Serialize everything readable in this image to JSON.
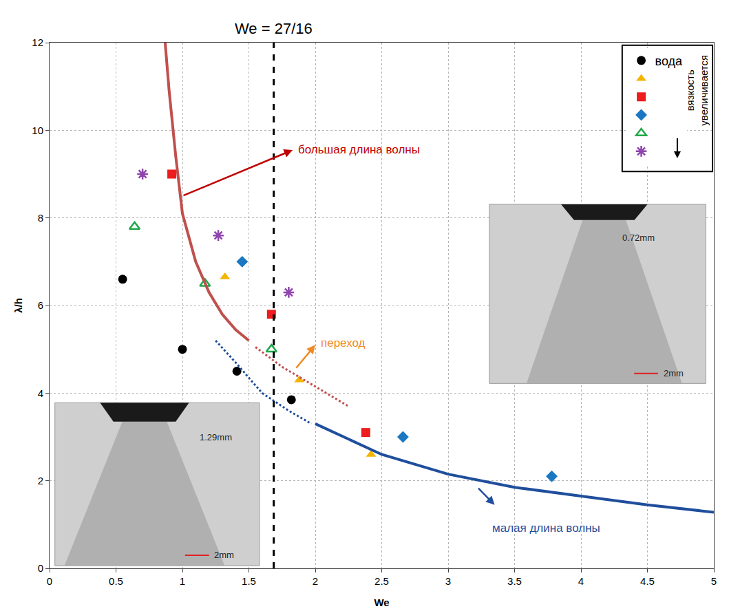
{
  "chart_data": {
    "type": "scatter",
    "x_label": "We",
    "y_label": "λ/h",
    "xlim": [
      0,
      5
    ],
    "xticks": [
      0,
      0.5,
      1,
      1.5,
      2,
      2.5,
      3,
      3.5,
      4,
      4.5,
      5
    ],
    "ylim": [
      0,
      12
    ],
    "yticks": [
      0,
      2,
      4,
      6,
      8,
      10,
      12
    ],
    "grid": true,
    "legend": "upper right",
    "legend_note": "вязкость увеличивается",
    "vline": {
      "x": 1.6875,
      "label": "We = 27/16",
      "line_style": "dashed",
      "color": "#000000"
    },
    "series": [
      {
        "name": "вода",
        "type": "scatter",
        "marker": "circle",
        "color": "#000000",
        "x": [
          0.55,
          1.0,
          1.41,
          1.82
        ],
        "values": [
          6.6,
          5.0,
          4.5,
          3.85
        ]
      },
      {
        "type": "scatter",
        "marker": "triangle-up",
        "color": "#f5b400",
        "x": [
          1.32,
          1.88,
          2.42
        ],
        "values": [
          6.65,
          4.3,
          2.6
        ]
      },
      {
        "type": "scatter",
        "marker": "square",
        "color": "#ee1c1c",
        "x": [
          0.92,
          1.67,
          2.38
        ],
        "values": [
          9.0,
          5.8,
          3.1
        ]
      },
      {
        "type": "scatter",
        "marker": "diamond",
        "color": "#1a78c2",
        "x": [
          1.45,
          2.66,
          3.78
        ],
        "values": [
          7.0,
          3.0,
          2.1
        ]
      },
      {
        "type": "scatter",
        "marker": "triangle-up-open",
        "color": "#22a84a",
        "x": [
          0.64,
          1.17,
          1.67
        ],
        "values": [
          7.8,
          6.5,
          5.0
        ]
      },
      {
        "type": "scatter",
        "marker": "asterisk-open",
        "color": "#8e44ad",
        "x": [
          0.7,
          1.27,
          1.8
        ],
        "values": [
          9.0,
          7.6,
          6.3
        ]
      },
      {
        "type": "line",
        "line_style": "solid",
        "color": "#c0504d",
        "x": [
          0.87,
          0.9,
          0.95,
          1.0,
          1.1,
          1.2,
          1.3,
          1.4,
          1.5
        ],
        "values": [
          12,
          10.9,
          9.4,
          8.1,
          7.0,
          6.3,
          5.8,
          5.45,
          5.2
        ]
      },
      {
        "type": "line",
        "line_style": "dotted",
        "color": "#c0504d",
        "x": [
          1.55,
          1.75,
          2.0,
          2.25
        ],
        "values": [
          5.05,
          4.6,
          4.15,
          3.7
        ]
      },
      {
        "type": "line",
        "line_style": "dotted",
        "color": "#1f4e9c",
        "x": [
          1.25,
          1.4,
          1.6,
          1.8,
          1.97
        ],
        "values": [
          5.2,
          4.7,
          4.0,
          3.6,
          3.3
        ]
      },
      {
        "type": "line",
        "line_style": "solid",
        "color": "#1f4e9c",
        "x": [
          2.0,
          2.5,
          3.0,
          3.5,
          4.0,
          4.5,
          5.0
        ],
        "values": [
          3.3,
          2.6,
          2.15,
          1.85,
          1.65,
          1.45,
          1.28
        ]
      }
    ],
    "annotations": [
      {
        "text": "большая длина волны",
        "color": "#c00000",
        "x": 1.86,
        "y": 9.55,
        "arrow": [
          [
            1.0,
            8.5
          ],
          [
            1.83,
            9.55
          ]
        ]
      },
      {
        "text": "переход",
        "color": "#f08a24",
        "x": 2.03,
        "y": 5.15,
        "arrow": [
          [
            1.85,
            4.55
          ],
          [
            2.0,
            5.1
          ]
        ]
      },
      {
        "text": "малая длина волны",
        "color": "#1f4e9c",
        "x": 3.32,
        "y": 0.92,
        "arrow": [
          [
            3.22,
            1.85
          ],
          [
            3.35,
            1.45
          ]
        ]
      }
    ],
    "insets": [
      {
        "labels": [
          "1.29mm",
          "2mm"
        ]
      },
      {
        "labels": [
          "0.72mm",
          "2mm"
        ]
      }
    ]
  }
}
